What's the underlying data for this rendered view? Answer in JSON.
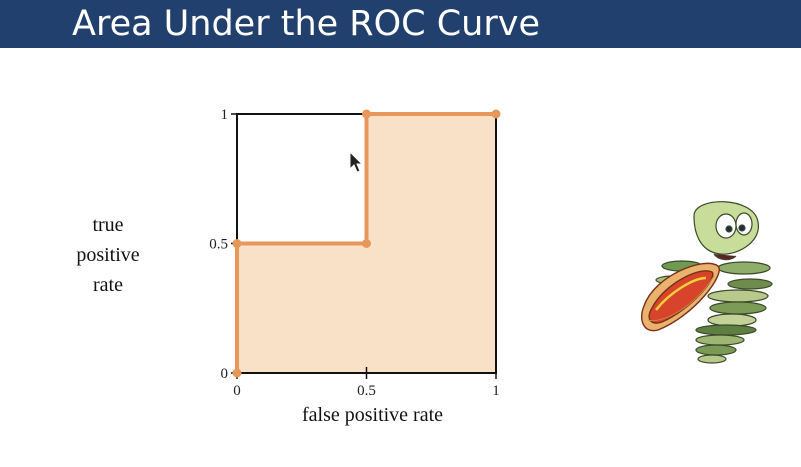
{
  "title": "Area Under the ROC Curve",
  "chart_data": {
    "type": "line",
    "title": "",
    "xlabel": "false positive rate",
    "ylabel_lines": [
      "true",
      "positive",
      "rate"
    ],
    "xlim": [
      0,
      1
    ],
    "ylim": [
      0,
      1
    ],
    "x_ticks": [
      0,
      0.5,
      1
    ],
    "y_ticks": [
      0,
      0.5,
      1
    ],
    "x_tick_labels": [
      "0",
      "0.5",
      "1"
    ],
    "y_tick_labels": [
      "0",
      "0.5",
      "1"
    ],
    "grid": false,
    "area_under_curve_shaded": true,
    "series": [
      {
        "points": [
          {
            "x": 0,
            "y": 0
          },
          {
            "x": 0,
            "y": 0.5
          },
          {
            "x": 0.5,
            "y": 0.5
          },
          {
            "x": 0.5,
            "y": 1
          },
          {
            "x": 1,
            "y": 1
          }
        ]
      }
    ],
    "colors": {
      "curve": "#e8975a",
      "fill": "#f9e1c7",
      "frame": "#111111"
    }
  },
  "icons": {
    "cursor": "mouse-pointer-icon",
    "mascot": "hotdog-creature-illustration"
  }
}
